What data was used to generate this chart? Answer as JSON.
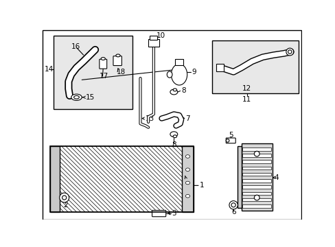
{
  "bg": "#ffffff",
  "lc": "#000000",
  "gray_fill": "#e8e8e8",
  "light_fill": "#f5f5f5",
  "fig_w": 4.89,
  "fig_h": 3.6,
  "dpi": 100
}
